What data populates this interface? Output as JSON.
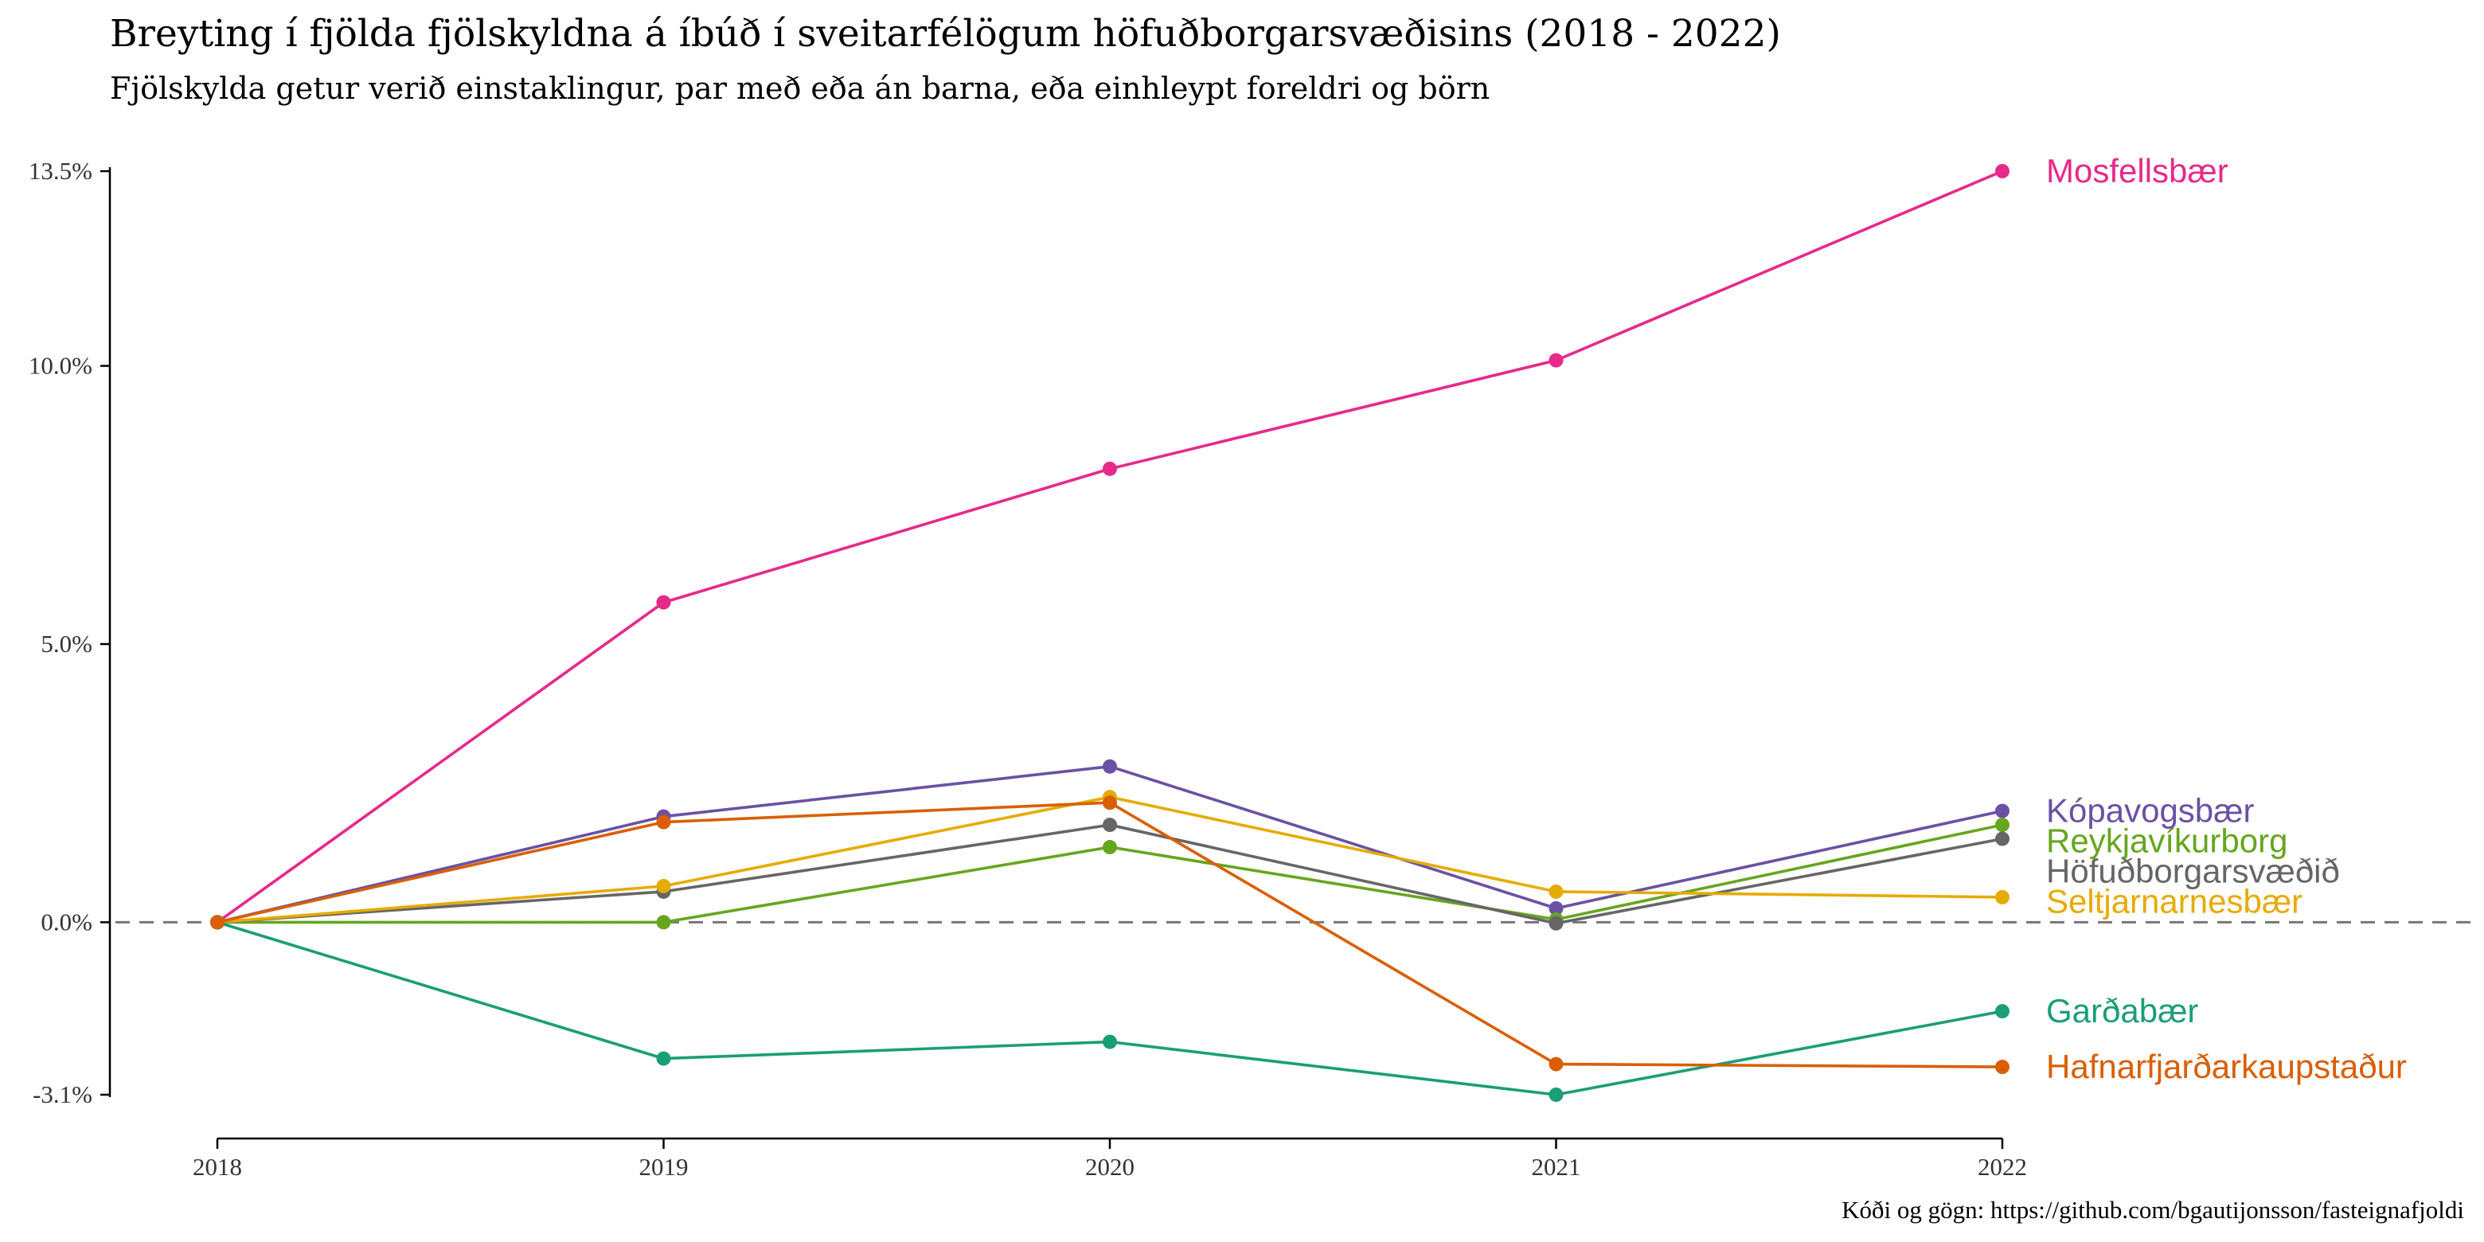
{
  "chart_data": {
    "type": "line",
    "title": "Breyting í fjölda fjölskyldna á íbúð í sveitarfélögum höfuðborgarsvæðisins (2018 - 2022)",
    "subtitle": "Fjölskylda getur verið einstaklingur, par með eða án barna, eða einhleypt foreldri og börn",
    "caption": "Kóði og gögn: https://github.com/bgautijonsson/fasteignafjoldi",
    "x": [
      2018,
      2019,
      2020,
      2021,
      2022
    ],
    "x_tick_labels": [
      "2018",
      "2019",
      "2020",
      "2021",
      "2022"
    ],
    "y_ticks": [
      -3.1,
      0.0,
      5.0,
      10.0,
      13.5
    ],
    "y_tick_labels": [
      "-3.1%",
      "0.0%",
      "5.0%",
      "10.0%",
      "13.5%"
    ],
    "ylim": [
      -3.1,
      13.5
    ],
    "reference_line": {
      "y": 0,
      "style": "dashed",
      "color": "#777777"
    },
    "grid": false,
    "legend": "direct labels at right end",
    "series": [
      {
        "name": "Mosfellsbær",
        "color": "#E7298A",
        "values": [
          0.0,
          5.75,
          8.15,
          10.1,
          13.5
        ]
      },
      {
        "name": "Kópavogsbær",
        "color": "#6A51A3",
        "values": [
          0.0,
          1.9,
          2.8,
          0.25,
          2.0
        ]
      },
      {
        "name": "Reykjavíkurborg",
        "color": "#66A61E",
        "values": [
          0.0,
          0.0,
          1.35,
          0.05,
          1.75
        ]
      },
      {
        "name": "Höfuðborgarsvæðið",
        "color": "#666666",
        "values": [
          0.0,
          0.55,
          1.75,
          -0.02,
          1.5
        ]
      },
      {
        "name": "Seltjarnarnesbær",
        "color": "#E6AB02",
        "values": [
          0.0,
          0.65,
          2.25,
          0.55,
          0.45
        ]
      },
      {
        "name": "Garðabær",
        "color": "#1B9E77",
        "values": [
          0.0,
          -2.45,
          -2.15,
          -3.1,
          -1.6
        ]
      },
      {
        "name": "Hafnarfjarðarkaupstaður",
        "color": "#D95F02",
        "values": [
          0.0,
          1.8,
          2.15,
          -2.55,
          -2.6
        ]
      }
    ]
  }
}
